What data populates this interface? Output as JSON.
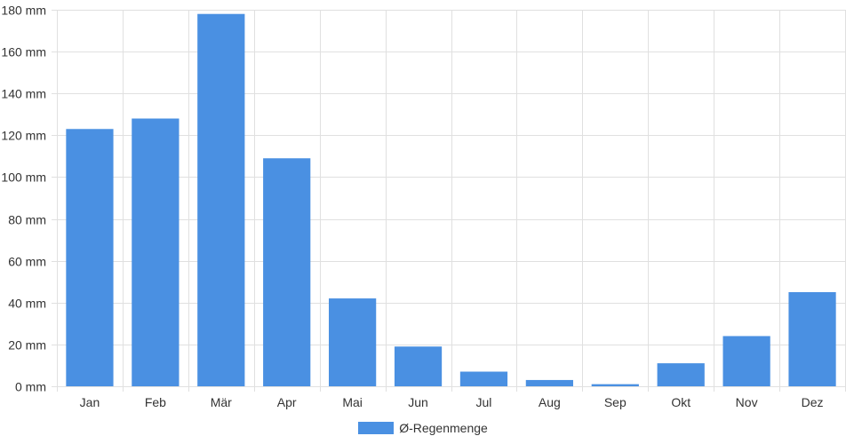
{
  "chart_data": {
    "type": "bar",
    "categories": [
      "Jan",
      "Feb",
      "Mär",
      "Apr",
      "Mai",
      "Jun",
      "Jul",
      "Aug",
      "Sep",
      "Okt",
      "Nov",
      "Dez"
    ],
    "series": [
      {
        "name": "Ø-Regenmenge",
        "values": [
          123,
          128,
          178,
          109,
          42,
          19,
          7,
          3,
          1,
          11,
          24,
          45
        ],
        "color": "#4a90e2"
      }
    ],
    "y_unit": "mm",
    "ylim": [
      0,
      180
    ],
    "y_ticks": [
      "0 mm",
      "20 mm",
      "40 mm",
      "60 mm",
      "80 mm",
      "100 mm",
      "120 mm",
      "140 mm",
      "160 mm",
      "180 mm"
    ],
    "grid": true,
    "legend_position": "bottom",
    "gridline_color": "#e0e0e0"
  }
}
